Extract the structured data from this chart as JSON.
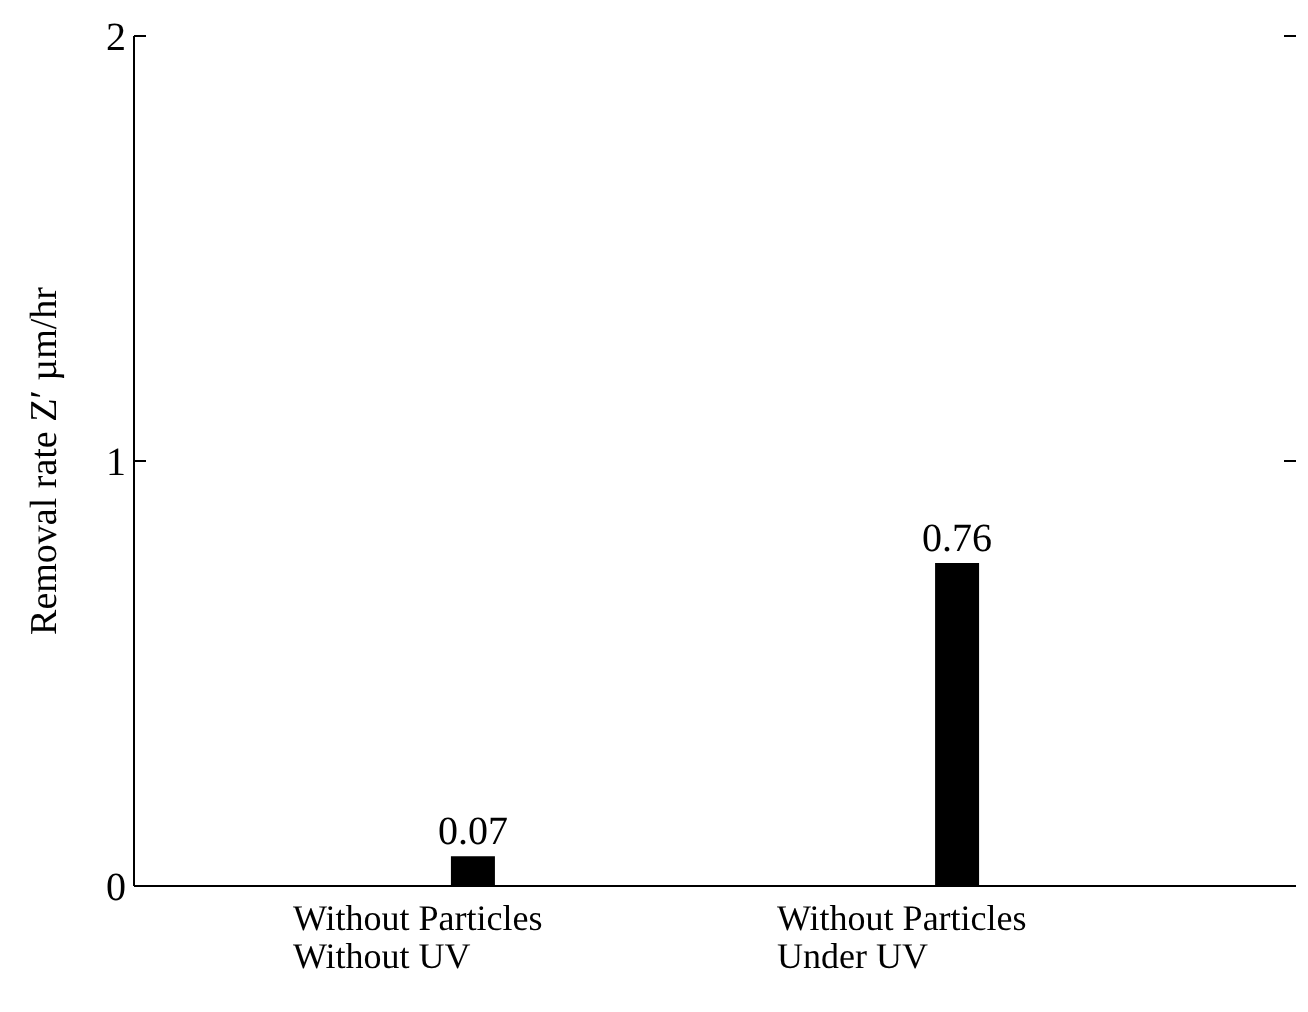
{
  "chart_data": {
    "type": "bar",
    "ylabel": "Removal rate   Z′  µm/hr",
    "categories": [
      "Without Particles\nWithout UV",
      "Without Particles\nUnder UV"
    ],
    "values": [
      0.07,
      0.76
    ],
    "color": "#000000",
    "ylim": [
      0,
      2
    ],
    "yticks": [
      0,
      1,
      2
    ],
    "data_labels": true
  }
}
